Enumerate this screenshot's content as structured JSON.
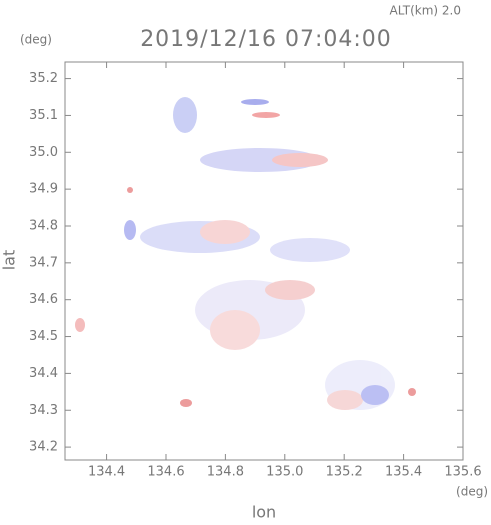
{
  "chart_data": {
    "type": "map",
    "title": "2019/12/16 07:04:00",
    "subtitle": "ALT(km) 2.0",
    "x_label": "lon",
    "y_label": "lat",
    "x_unit": "(deg)",
    "y_unit": "(deg)",
    "xlim": [
      134.26,
      135.6
    ],
    "ylim": [
      34.165,
      35.245
    ],
    "xticks": [
      134.4,
      134.6,
      134.8,
      {
        "value": 135,
        "label": "135.0"
      },
      135.2,
      135.4,
      135.6
    ],
    "yticks": [
      35.2,
      35.1,
      {
        "value": 35,
        "label": "35.0"
      },
      34.9,
      34.8,
      34.7,
      34.6,
      34.5,
      34.4,
      34.3,
      34.2
    ]
  }
}
